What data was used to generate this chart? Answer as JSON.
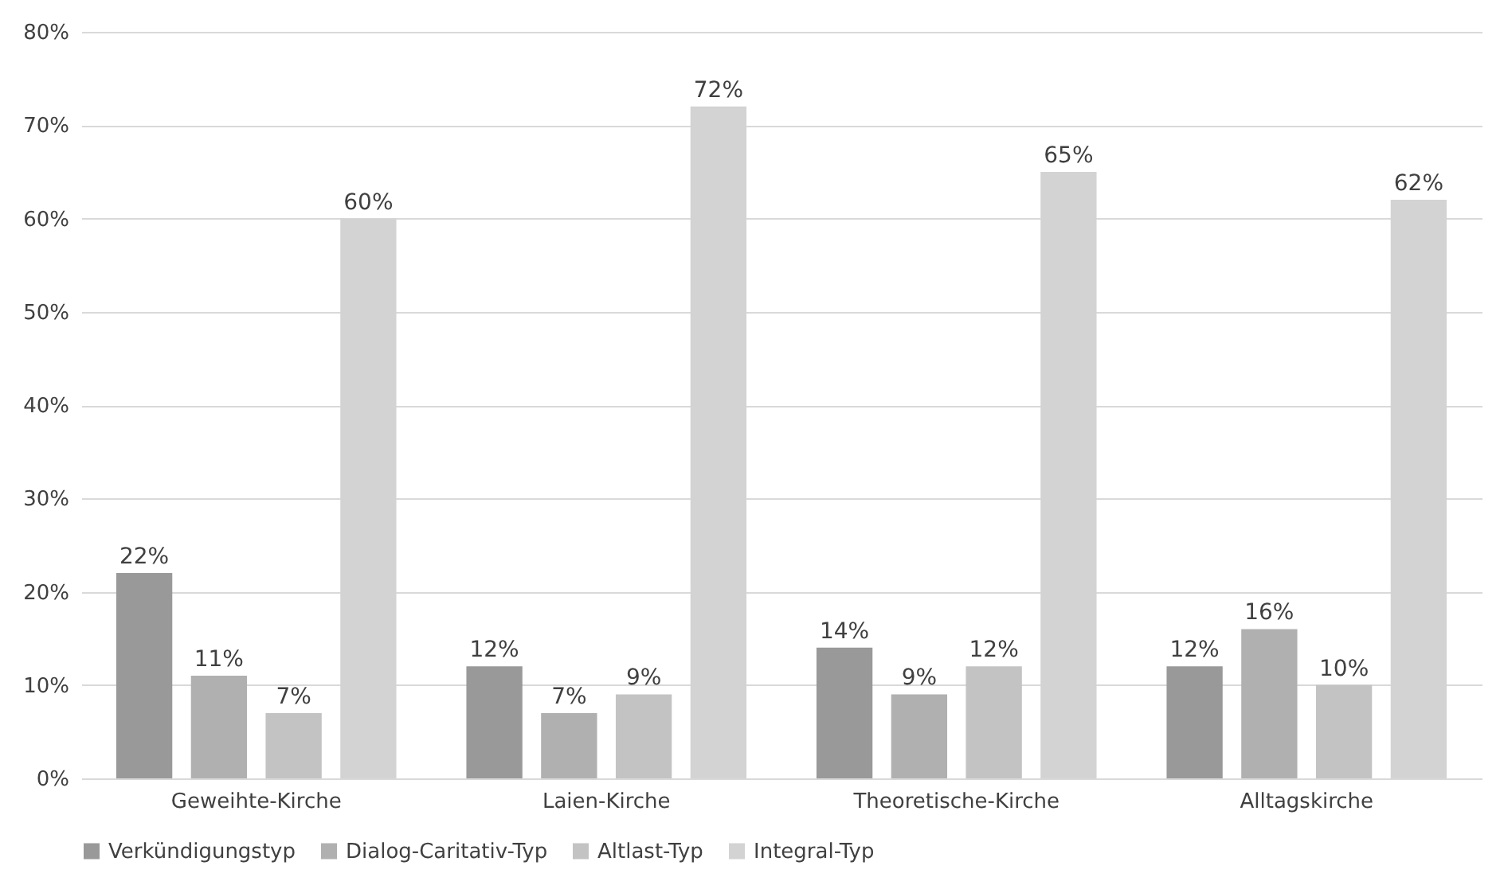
{
  "chart_data": {
    "type": "bar",
    "categories": [
      "Geweihte-Kirche",
      "Laien-Kirche",
      "Theoretische-Kirche",
      "Alltagskirche"
    ],
    "series": [
      {
        "name": "Verkündigungstyp",
        "color": "#999999",
        "values": [
          22,
          12,
          14,
          12
        ]
      },
      {
        "name": "Dialog-Caritativ-Typ",
        "color": "#b0b0b0",
        "values": [
          11,
          7,
          9,
          16
        ]
      },
      {
        "name": "Altlast-Typ",
        "color": "#c3c3c3",
        "values": [
          7,
          9,
          12,
          10
        ]
      },
      {
        "name": "Integral-Typ",
        "color": "#d3d3d3",
        "values": [
          60,
          72,
          65,
          62
        ]
      }
    ],
    "ylim": [
      0,
      80
    ],
    "yticks": [
      {
        "value": 0,
        "label": "0%"
      },
      {
        "value": 10,
        "label": "10%"
      },
      {
        "value": 20,
        "label": "20%"
      },
      {
        "value": 30,
        "label": "30%"
      },
      {
        "value": 40,
        "label": "40%"
      },
      {
        "value": 50,
        "label": "50%"
      },
      {
        "value": 60,
        "label": "60%"
      },
      {
        "value": 70,
        "label": "70%"
      },
      {
        "value": 80,
        "label": "80%"
      }
    ],
    "value_labels": [
      [
        "22%",
        "12%",
        "14%",
        "12%"
      ],
      [
        "11%",
        "7%",
        "9%",
        "16%"
      ],
      [
        "7%",
        "9%",
        "12%",
        "10%"
      ],
      [
        "60%",
        "72%",
        "65%",
        "62%"
      ]
    ],
    "grid": "y",
    "legend": "bottom"
  }
}
